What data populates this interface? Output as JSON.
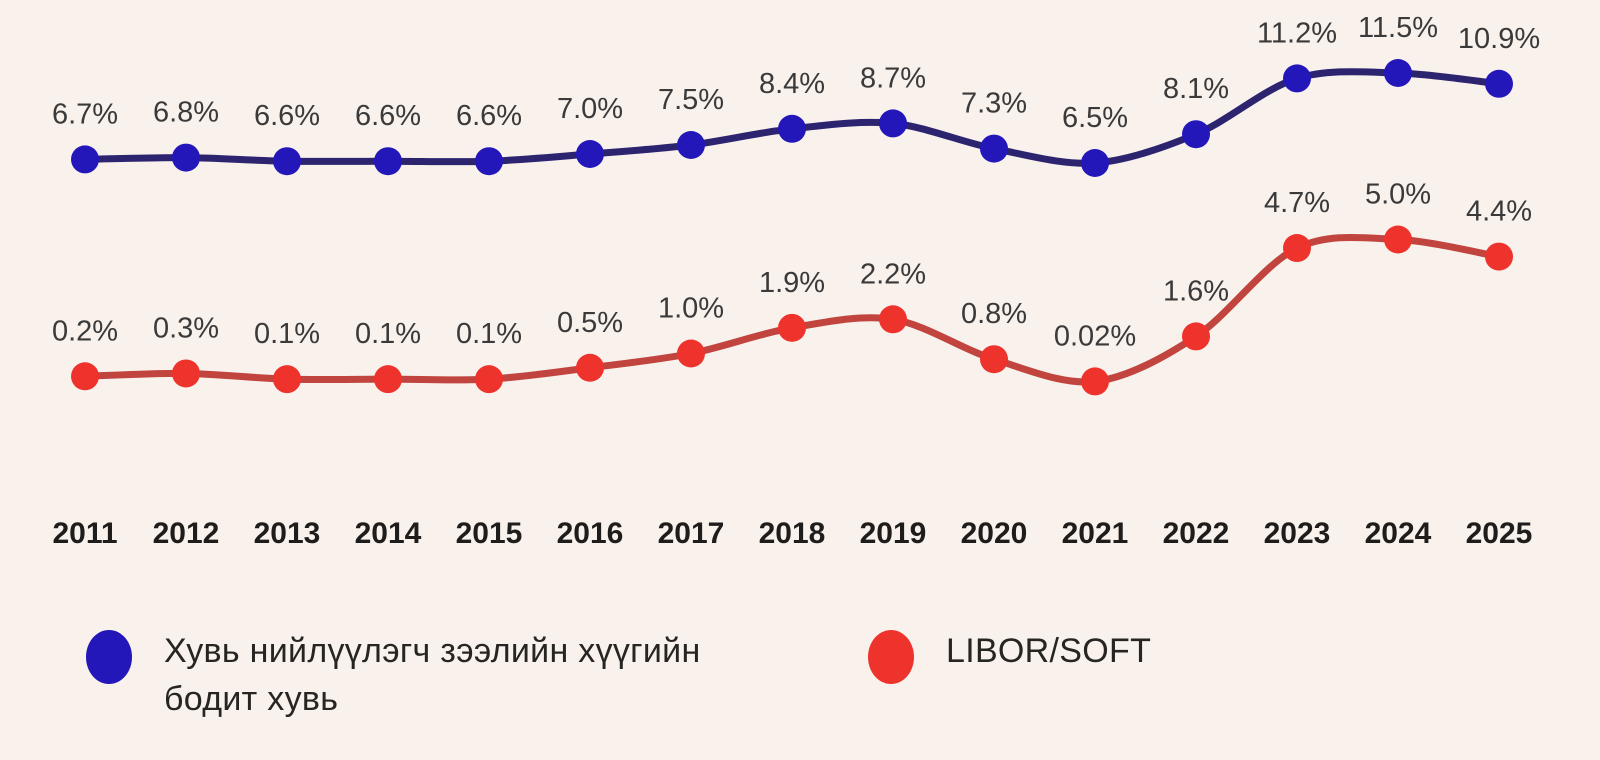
{
  "background_color": "#f8f1ec",
  "text_color": "#3a3a3a",
  "year_color": "#1f1d1b",
  "chart_data": {
    "type": "line",
    "categories": [
      "2011",
      "2012",
      "2013",
      "2014",
      "2015",
      "2016",
      "2017",
      "2018",
      "2019",
      "2020",
      "2021",
      "2022",
      "2023",
      "2024",
      "2025"
    ],
    "series": [
      {
        "name": "Хувь нийлүүлэгч зээлийн хүүгийн бодит хувь",
        "dot_color": "#2417ba",
        "line_color": "#2d2470",
        "values": [
          6.7,
          6.8,
          6.6,
          6.6,
          6.6,
          7.0,
          7.5,
          8.4,
          8.7,
          7.3,
          6.5,
          8.1,
          11.2,
          11.5,
          10.9
        ],
        "labels": [
          "6.7%",
          "6.8%",
          "6.6%",
          "6.6%",
          "6.6%",
          "7.0%",
          "7.5%",
          "8.4%",
          "8.7%",
          "7.3%",
          "6.5%",
          "8.1%",
          "11.2%",
          "11.5%",
          "10.9%"
        ]
      },
      {
        "name": "LIBOR/SOFT",
        "dot_color": "#ee332d",
        "line_color": "#c2443e",
        "values": [
          0.2,
          0.3,
          0.1,
          0.1,
          0.1,
          0.5,
          1.0,
          1.9,
          2.2,
          0.8,
          0.02,
          1.6,
          4.7,
          5.0,
          4.4
        ],
        "labels": [
          "0.2%",
          "0.3%",
          "0.1%",
          "0.1%",
          "0.1%",
          "0.5%",
          "1.0%",
          "1.9%",
          "2.2%",
          "0.8%",
          "0.02%",
          "1.6%",
          "4.7%",
          "5.0%",
          "4.4%"
        ]
      }
    ],
    "data_labels": "above each point, percent format",
    "xlabel": "",
    "ylabel": "",
    "grid": false,
    "y_axis_shown": false,
    "legend_position": "bottom"
  },
  "legend": [
    {
      "label": "Хувь нийлүүлэгч зээлийн хүүгийн бодит хувь",
      "color": "#2417ba"
    },
    {
      "label": "LIBOR/SOFT",
      "color": "#ee332d"
    }
  ]
}
